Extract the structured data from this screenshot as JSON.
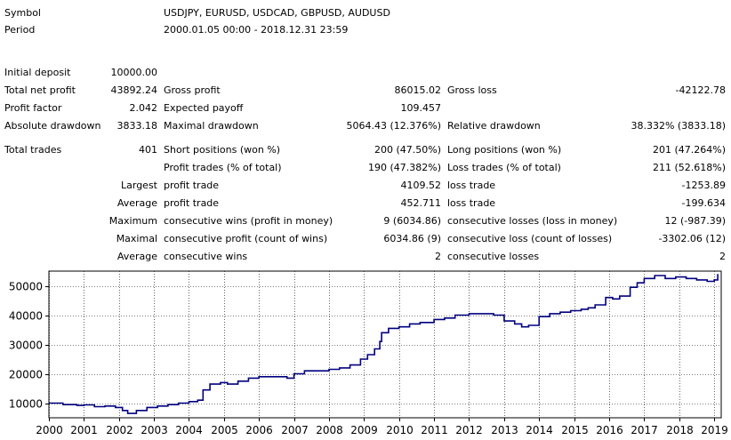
{
  "summary": {
    "symbol_label": "Symbol",
    "symbol_value": "USDJPY, EURUSD, USDCAD, GBPUSD, AUDUSD",
    "period_label": "Period",
    "period_value": "2000.01.05 00:00 - 2018.12.31 23:59",
    "initial_deposit_label": "Initial deposit",
    "initial_deposit_value": "10000.00"
  },
  "stats": {
    "total_net_profit_label": "Total net profit",
    "total_net_profit_value": "43892.24",
    "gross_profit_label": "Gross profit",
    "gross_profit_value": "86015.02",
    "gross_loss_label": "Gross loss",
    "gross_loss_value": "-42122.78",
    "profit_factor_label": "Profit factor",
    "profit_factor_value": "2.042",
    "expected_payoff_label": "Expected payoff",
    "expected_payoff_value": "109.457",
    "absolute_drawdown_label": "Absolute drawdown",
    "absolute_drawdown_value": "3833.18",
    "maximal_drawdown_label": "Maximal drawdown",
    "maximal_drawdown_value": "5064.43 (12.376%)",
    "relative_drawdown_label": "Relative drawdown",
    "relative_drawdown_value": "38.332% (3833.18)"
  },
  "trades": {
    "total_trades_label": "Total trades",
    "total_trades_value": "401",
    "short_positions_label": "Short positions (won %)",
    "short_positions_value": "200 (47.50%)",
    "long_positions_label": "Long positions (won %)",
    "long_positions_value": "201 (47.264%)",
    "profit_trades_label": "Profit trades (% of total)",
    "profit_trades_value": "190 (47.382%)",
    "loss_trades_label": "Loss trades (% of total)",
    "loss_trades_value": "211 (52.618%)",
    "rows": [
      {
        "prefix": "Largest",
        "label": "profit trade",
        "value": "4109.52",
        "label2": "loss trade",
        "value2": "-1253.89"
      },
      {
        "prefix": "Average",
        "label": "profit trade",
        "value": "452.711",
        "label2": "loss trade",
        "value2": "-199.634"
      },
      {
        "prefix": "Maximum",
        "label": "consecutive wins (profit in money)",
        "value": "9 (6034.86)",
        "label2": "consecutive losses (loss in money)",
        "value2": "12 (-987.39)"
      },
      {
        "prefix": "Maximal",
        "label": "consecutive profit (count of wins)",
        "value": "6034.86 (9)",
        "label2": "consecutive loss (count of losses)",
        "value2": "-3302.06 (12)"
      },
      {
        "prefix": "Average",
        "label": "consecutive wins",
        "value": "2",
        "label2": "consecutive losses",
        "value2": "2"
      }
    ]
  },
  "chart_data": {
    "type": "line",
    "title": "",
    "xlabel": "",
    "ylabel": "",
    "xlim": [
      2000,
      2019.2
    ],
    "ylim": [
      5000,
      55000
    ],
    "x_ticks": [
      "2000",
      "2001",
      "2002",
      "2003",
      "2004",
      "2005",
      "2006",
      "2007",
      "2008",
      "2009",
      "2010",
      "2011",
      "2012",
      "2013",
      "2014",
      "2015",
      "2016",
      "2017",
      "2018",
      "2019"
    ],
    "y_ticks": [
      10000,
      20000,
      30000,
      40000,
      50000
    ],
    "grid": true,
    "line_color": "#00007f",
    "series": [
      {
        "x": [
          2000.0,
          2000.4,
          2000.8,
          2001.0,
          2001.3,
          2001.6,
          2001.9,
          2002.1,
          2002.25,
          2002.5,
          2002.8,
          2003.1,
          2003.4,
          2003.7,
          2004.0,
          2004.25,
          2004.4,
          2004.6,
          2004.9,
          2005.1,
          2005.4,
          2005.7,
          2006.0,
          2006.4,
          2006.8,
          2007.0,
          2007.3,
          2007.6,
          2008.0,
          2008.3,
          2008.6,
          2008.9,
          2009.1,
          2009.3,
          2009.45,
          2009.5,
          2009.7,
          2010.0,
          2010.3,
          2010.6,
          2011.0,
          2011.3,
          2011.6,
          2012.0,
          2012.4,
          2012.7,
          2013.0,
          2013.3,
          2013.5,
          2013.7,
          2014.0,
          2014.3,
          2014.6,
          2014.9,
          2015.2,
          2015.4,
          2015.6,
          2015.9,
          2016.1,
          2016.3,
          2016.6,
          2016.8,
          2017.0,
          2017.3,
          2017.6,
          2017.9,
          2018.2,
          2018.5,
          2018.8,
          2019.0,
          2019.1
        ],
        "y": [
          10000,
          9500,
          9200,
          9400,
          8800,
          9000,
          8500,
          7500,
          6500,
          7500,
          8500,
          9000,
          9500,
          10000,
          10500,
          11000,
          14500,
          16500,
          17000,
          16500,
          17500,
          18500,
          19000,
          19000,
          18500,
          20000,
          21000,
          21000,
          21500,
          22000,
          23000,
          25000,
          26500,
          28500,
          31000,
          34000,
          35500,
          36000,
          37000,
          37500,
          38500,
          39000,
          40000,
          40500,
          40500,
          40000,
          38000,
          37000,
          36000,
          36500,
          39500,
          40500,
          41000,
          41500,
          42000,
          42500,
          43500,
          46000,
          45500,
          46500,
          49500,
          51000,
          52500,
          53500,
          52500,
          53000,
          52500,
          52000,
          51500,
          52000,
          54000
        ]
      }
    ]
  }
}
